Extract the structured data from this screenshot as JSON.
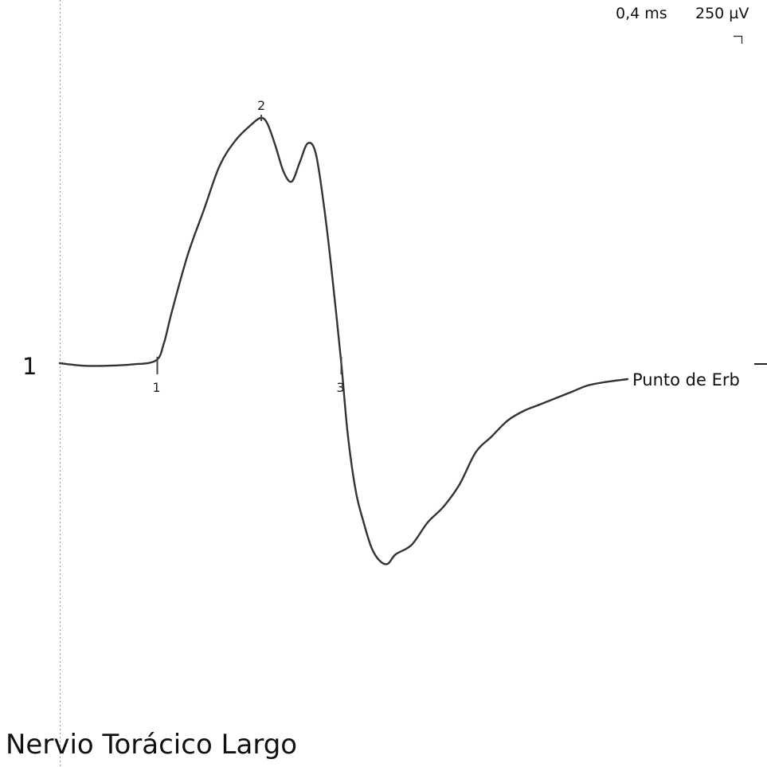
{
  "header": {
    "time_scale": "0,4 ms",
    "amplitude_scale": "250 µV"
  },
  "trace": {
    "number": "1",
    "label": "Punto de Erb"
  },
  "footer": {
    "title": "Nervio Torácico Largo"
  },
  "colors": {
    "trace": "#333333",
    "marker": "#444444",
    "cursor": "#999999"
  },
  "chart_data": {
    "type": "line",
    "title": "",
    "xlabel": "",
    "ylabel": "",
    "x_unit": "ms",
    "y_unit": "µV",
    "xlim": [
      0,
      3.56
    ],
    "ylim": [
      -1090,
      1890
    ],
    "grid": false,
    "series": [
      {
        "name": "Punto de Erb",
        "x": [
          0,
          0.15,
          0.3,
          0.45,
          0.6,
          0.65,
          0.7,
          0.8,
          0.9,
          1.0,
          1.1,
          1.2,
          1.26,
          1.3,
          1.35,
          1.4,
          1.45,
          1.5,
          1.55,
          1.6,
          1.65,
          1.7,
          1.76,
          1.8,
          1.85,
          1.9,
          1.95,
          2.0,
          2.05,
          2.1,
          2.2,
          2.3,
          2.4,
          2.5,
          2.6,
          2.7,
          2.8,
          2.9,
          3.0,
          3.1,
          3.2,
          3.3,
          3.4,
          3.55
        ],
        "y": [
          0,
          -8,
          -8,
          -4,
          8,
          60,
          160,
          340,
          480,
          620,
          700,
          750,
          770,
          750,
          680,
          600,
          570,
          630,
          690,
          660,
          500,
          290,
          0,
          -220,
          -400,
          -500,
          -580,
          -620,
          -630,
          -600,
          -570,
          -500,
          -450,
          -380,
          -280,
          -230,
          -180,
          -150,
          -130,
          -110,
          -90,
          -70,
          -60,
          -50
        ]
      }
    ],
    "markers": [
      {
        "label": "1",
        "x": 0.61,
        "y": 0
      },
      {
        "label": "2",
        "x": 1.26,
        "y": 770
      },
      {
        "label": "3",
        "x": 1.76,
        "y": 0
      }
    ]
  }
}
